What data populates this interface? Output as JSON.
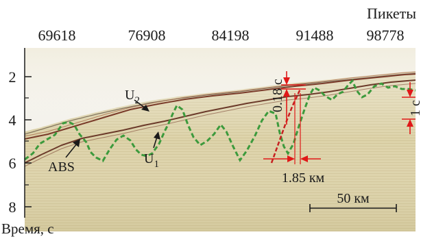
{
  "top_axis": {
    "title": "Пикеты",
    "ticks": [
      "69618",
      "76908",
      "84198",
      "91488",
      "98778"
    ]
  },
  "left_axis": {
    "title": "Время, с",
    "ticks": [
      "2",
      "4",
      "6",
      "8"
    ]
  },
  "labels": {
    "horizon_u2": "U",
    "horizon_u2_sub": "2",
    "horizon_u1": "U",
    "horizon_u1_sub": "1",
    "abs": "ABS",
    "time_offset": "0.18 с",
    "time_bracket": "1 с",
    "distance_offset": "1.85 км",
    "scale_bar": "50 км"
  },
  "colors": {
    "horizon": "#7a3b2a",
    "basement": "#3c9a3c",
    "annotation": "#e01818",
    "fault": "#c62020",
    "section_bg": "#ddd3aa"
  }
}
